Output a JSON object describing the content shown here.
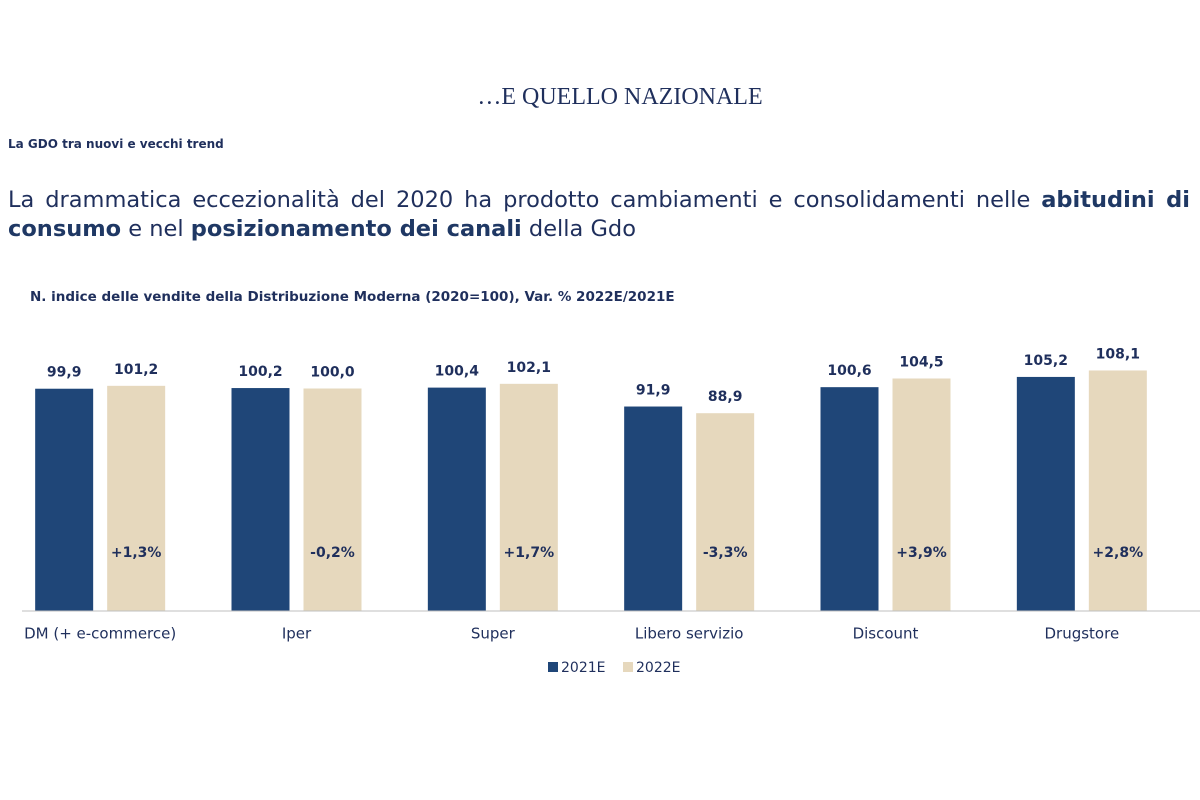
{
  "slide": {
    "title": "…E QUELLO NAZIONALE",
    "section": "La GDO tra nuovi e vecchi trend",
    "headline": [
      {
        "text": "La drammatica eccezionalità del 2020 ha prodotto cambiamenti e consolidamenti nelle ",
        "bold": false
      },
      {
        "text": "abitudini di consumo",
        "bold": true
      },
      {
        "text": " e nel ",
        "bold": false
      },
      {
        "text": "posizionamento dei canali",
        "bold": true
      },
      {
        "text": " della Gdo",
        "bold": false
      }
    ]
  },
  "chart_data": {
    "type": "bar",
    "title": "N. indice delle vendite della Distribuzione Moderna (2020=100), Var. % 2022E/2021E",
    "categories": [
      "DM (+ e-commerce)",
      "Iper",
      "Super",
      "Libero servizio",
      "Discount",
      "Drugstore"
    ],
    "series": [
      {
        "name": "2021E",
        "color": "#1f4678",
        "values": [
          99.9,
          100.2,
          100.4,
          91.9,
          100.6,
          105.2
        ],
        "value_labels": [
          "99,9",
          "100,2",
          "100,4",
          "91,9",
          "100,6",
          "105,2"
        ]
      },
      {
        "name": "2022E",
        "color": "#e6d8bd",
        "values": [
          101.2,
          100.0,
          102.1,
          88.9,
          104.5,
          108.1
        ],
        "value_labels": [
          "101,2",
          "100,0",
          "102,1",
          "88,9",
          "104,5",
          "108,1"
        ]
      }
    ],
    "changes": {
      "values": [
        1.3,
        -0.2,
        1.7,
        -3.3,
        3.9,
        2.8
      ],
      "value_labels": [
        "+1,3%",
        "-0,2%",
        "+1,7%",
        "-3,3%",
        "+3,9%",
        "+2,8%"
      ]
    },
    "ylim": [
      0,
      120
    ],
    "legend": "bottom"
  }
}
